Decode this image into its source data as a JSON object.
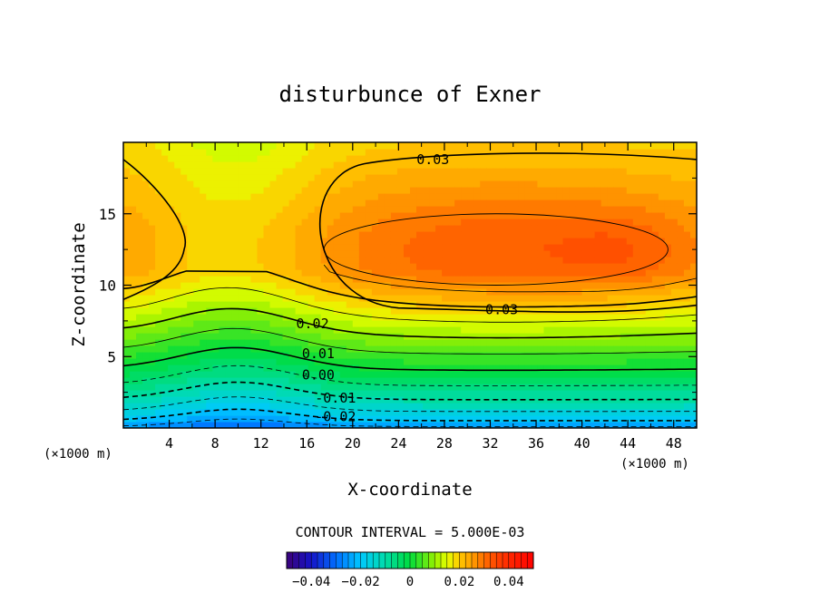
{
  "chart_data": {
    "type": "contour",
    "title": "disturbunce of Exner",
    "xlabel": "X-coordinate",
    "ylabel": "Z-coordinate",
    "x_unit_left": "(×1000 m)",
    "x_unit_right": "(×1000 m)",
    "xlim": [
      0,
      50
    ],
    "ylim": [
      0,
      20
    ],
    "x_ticks": [
      4,
      8,
      12,
      16,
      20,
      24,
      28,
      32,
      36,
      40,
      44,
      48
    ],
    "x_tick_labels": [
      "4",
      "8",
      "12",
      "16",
      "20",
      "24",
      "28",
      "32",
      "36",
      "40",
      "44",
      "48"
    ],
    "y_ticks": [
      5,
      10,
      15
    ],
    "y_tick_labels": [
      "5",
      "10",
      "15"
    ],
    "contour_interval_text": "CONTOUR INTERVAL = 5.000E-03",
    "contour_labels": [
      {
        "text": "0.03",
        "x": 27,
        "z": 18.8
      },
      {
        "text": "0.03",
        "x": 33,
        "z": 8.3
      },
      {
        "text": "0.02",
        "x": 16.5,
        "z": 7.3
      },
      {
        "text": "0.01",
        "x": 17,
        "z": 5.2
      },
      {
        "text": "0.00",
        "x": 17,
        "z": 3.7
      },
      {
        "text": "-0.01",
        "x": 18.5,
        "z": 2.1
      },
      {
        "text": "-0.02",
        "x": 18.5,
        "z": 0.8
      }
    ],
    "colorbar": {
      "range": [
        -0.05,
        0.05
      ],
      "ticks": [
        -0.04,
        -0.02,
        0,
        0.02,
        0.04
      ],
      "tick_labels": [
        "−0.04",
        "−0.02",
        "0",
        "0.02",
        "0.04"
      ]
    },
    "colors": {
      "level_high": "#ff2000",
      "level_mid": "#ff9a00",
      "level_low": "#00b8ff",
      "level_min": "#0040e0"
    }
  }
}
